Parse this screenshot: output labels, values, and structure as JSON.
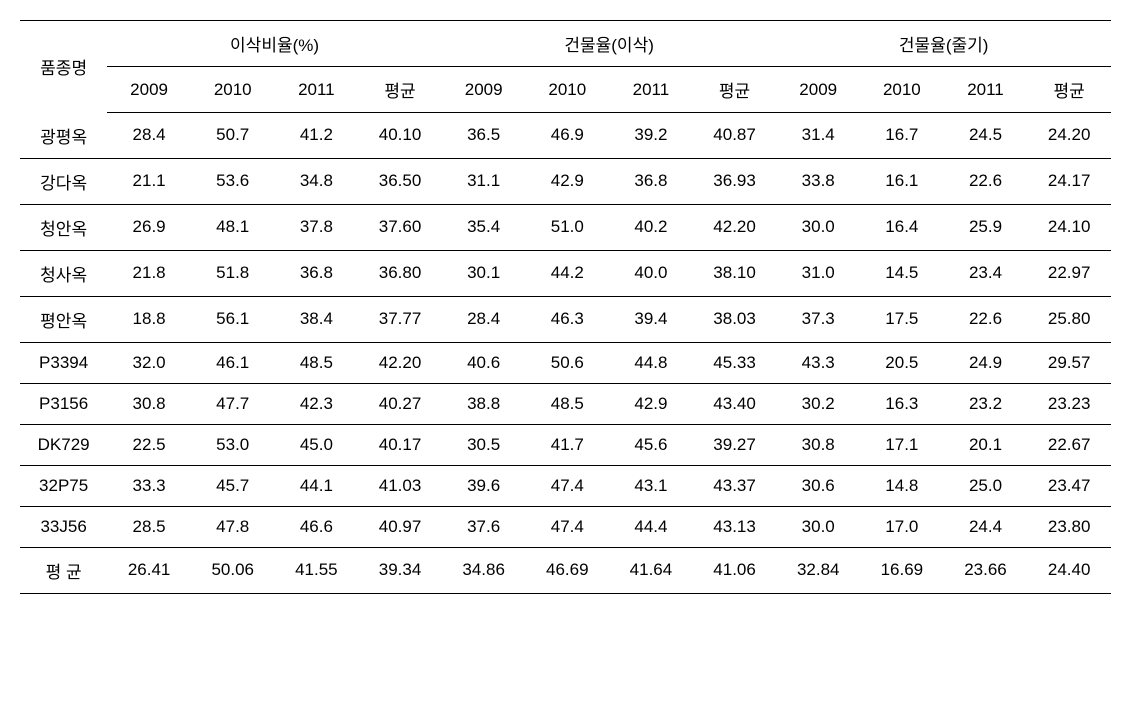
{
  "table": {
    "variety_header": "품종명",
    "group_headers": [
      "이삭비율(%)",
      "건물율(이삭)",
      "건물율(줄기)"
    ],
    "sub_headers": [
      "2009",
      "2010",
      "2011",
      "평균",
      "2009",
      "2010",
      "2011",
      "평균",
      "2009",
      "2010",
      "2011",
      "평균"
    ],
    "rows": [
      {
        "variety": "광평옥",
        "values": [
          "28.4",
          "50.7",
          "41.2",
          "40.10",
          "36.5",
          "46.9",
          "39.2",
          "40.87",
          "31.4",
          "16.7",
          "24.5",
          "24.20"
        ]
      },
      {
        "variety": "강다옥",
        "values": [
          "21.1",
          "53.6",
          "34.8",
          "36.50",
          "31.1",
          "42.9",
          "36.8",
          "36.93",
          "33.8",
          "16.1",
          "22.6",
          "24.17"
        ]
      },
      {
        "variety": "청안옥",
        "values": [
          "26.9",
          "48.1",
          "37.8",
          "37.60",
          "35.4",
          "51.0",
          "40.2",
          "42.20",
          "30.0",
          "16.4",
          "25.9",
          "24.10"
        ]
      },
      {
        "variety": "청사옥",
        "values": [
          "21.8",
          "51.8",
          "36.8",
          "36.80",
          "30.1",
          "44.2",
          "40.0",
          "38.10",
          "31.0",
          "14.5",
          "23.4",
          "22.97"
        ]
      },
      {
        "variety": "평안옥",
        "values": [
          "18.8",
          "56.1",
          "38.4",
          "37.77",
          "28.4",
          "46.3",
          "39.4",
          "38.03",
          "37.3",
          "17.5",
          "22.6",
          "25.80"
        ]
      },
      {
        "variety": "P3394",
        "values": [
          "32.0",
          "46.1",
          "48.5",
          "42.20",
          "40.6",
          "50.6",
          "44.8",
          "45.33",
          "43.3",
          "20.5",
          "24.9",
          "29.57"
        ]
      },
      {
        "variety": "P3156",
        "values": [
          "30.8",
          "47.7",
          "42.3",
          "40.27",
          "38.8",
          "48.5",
          "42.9",
          "43.40",
          "30.2",
          "16.3",
          "23.2",
          "23.23"
        ]
      },
      {
        "variety": "DK729",
        "values": [
          "22.5",
          "53.0",
          "45.0",
          "40.17",
          "30.5",
          "41.7",
          "45.6",
          "39.27",
          "30.8",
          "17.1",
          "20.1",
          "22.67"
        ]
      },
      {
        "variety": "32P75",
        "values": [
          "33.3",
          "45.7",
          "44.1",
          "41.03",
          "39.6",
          "47.4",
          "43.1",
          "43.37",
          "30.6",
          "14.8",
          "25.0",
          "23.47"
        ]
      },
      {
        "variety": "33J56",
        "values": [
          "28.5",
          "47.8",
          "46.6",
          "40.97",
          "37.6",
          "47.4",
          "44.4",
          "43.13",
          "30.0",
          "17.0",
          "24.4",
          "23.80"
        ]
      },
      {
        "variety": "평 균",
        "values": [
          "26.41",
          "50.06",
          "41.55",
          "39.34",
          "34.86",
          "46.69",
          "41.64",
          "41.06",
          "32.84",
          "16.69",
          "23.66",
          "24.40"
        ]
      }
    ],
    "styling": {
      "font_size": 17,
      "border_color": "#000000",
      "background_color": "#ffffff",
      "text_color": "#000000",
      "font_family": "Malgun Gothic"
    }
  }
}
